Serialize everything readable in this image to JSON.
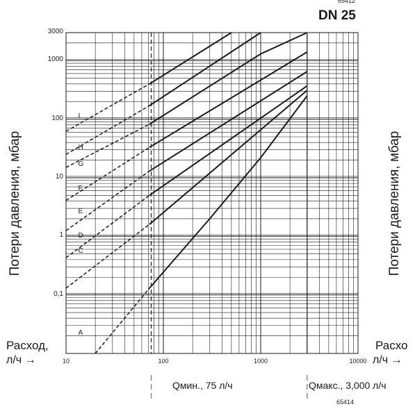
{
  "header": {
    "code_top": "65412",
    "title": "DN 25",
    "code_bottom": "65414"
  },
  "axes": {
    "ylabel_left": "Потери давления, мбар",
    "ylabel_right": "Потери давления, мбар",
    "xlabel_left_line1": "Расход,",
    "xlabel_left_line2": "л/ч →",
    "xlabel_right_line1": "Расхо",
    "xlabel_right_line2": "л/ч →"
  },
  "markers": {
    "qmin_label": "Qмин., 75 л/ч",
    "qmax_label": "Qмакс., 3,000 л/ч"
  },
  "chart_data": {
    "type": "line",
    "xscale": "log",
    "yscale": "log",
    "xlim": [
      10,
      10000
    ],
    "ylim": [
      0.01,
      3000
    ],
    "xticks": [
      {
        "value": 10,
        "label": "10"
      },
      {
        "value": 100,
        "label": "100"
      },
      {
        "value": 1000,
        "label": "1000"
      },
      {
        "value": 10000,
        "label": "10000"
      }
    ],
    "yticks": [
      {
        "value": 0.1,
        "label": "0,1"
      },
      {
        "value": 1,
        "label": "1"
      },
      {
        "value": 10,
        "label": "10"
      },
      {
        "value": 100,
        "label": "100"
      },
      {
        "value": 1000,
        "label": "1000"
      },
      {
        "value": 3000,
        "label": "3000"
      }
    ],
    "grid": true,
    "vlines": [
      {
        "x": 75,
        "name": "Qmin"
      },
      {
        "x": 3000,
        "name": "Qmax"
      }
    ],
    "series": [
      {
        "name": "A",
        "label_x": 14,
        "label_y": 0.022,
        "dashed": [
          [
            20,
            0.01
          ],
          [
            72,
            0.13
          ]
        ],
        "solid": [
          [
            72,
            0.13
          ],
          [
            300,
            2
          ],
          [
            1000,
            22
          ],
          [
            3000,
            250
          ]
        ]
      },
      {
        "name": "C",
        "label_x": 14,
        "label_y": 0.55,
        "dashed": [
          [
            10,
            0.13
          ],
          [
            72,
            1.6
          ]
        ],
        "solid": [
          [
            72,
            1.6
          ],
          [
            3000,
            310
          ]
        ]
      },
      {
        "name": "D",
        "label_x": 14,
        "label_y": 1.0,
        "dashed": [
          [
            10,
            0.43
          ],
          [
            72,
            5
          ]
        ],
        "solid": [
          [
            72,
            5
          ],
          [
            3000,
            370
          ]
        ]
      },
      {
        "name": "E",
        "label_x": 14,
        "label_y": 2.6,
        "dashed": [
          [
            10,
            1.25
          ],
          [
            72,
            13
          ]
        ],
        "solid": [
          [
            72,
            13
          ],
          [
            3000,
            650
          ]
        ]
      },
      {
        "name": "F",
        "label_x": 14,
        "label_y": 6.5,
        "dashed": [
          [
            10,
            4.1
          ],
          [
            72,
            33
          ]
        ],
        "solid": [
          [
            72,
            33
          ],
          [
            3000,
            1400
          ]
        ]
      },
      {
        "name": "G",
        "label_x": 14,
        "label_y": 17,
        "dashed": [
          [
            10,
            15
          ],
          [
            72,
            82
          ]
        ],
        "solid": [
          [
            72,
            82
          ],
          [
            1000,
            1300
          ],
          [
            3000,
            3000
          ]
        ]
      },
      {
        "name": "H",
        "label_x": 14,
        "label_y": 32,
        "dashed": [
          [
            10,
            25
          ],
          [
            72,
            170
          ]
        ],
        "solid": [
          [
            72,
            170
          ],
          [
            1000,
            3000
          ]
        ]
      },
      {
        "name": "I",
        "label_x": 14,
        "label_y": 110,
        "dashed": [
          [
            10,
            62
          ],
          [
            72,
            400
          ]
        ],
        "solid": [
          [
            72,
            400
          ],
          [
            500,
            3000
          ]
        ]
      }
    ]
  }
}
